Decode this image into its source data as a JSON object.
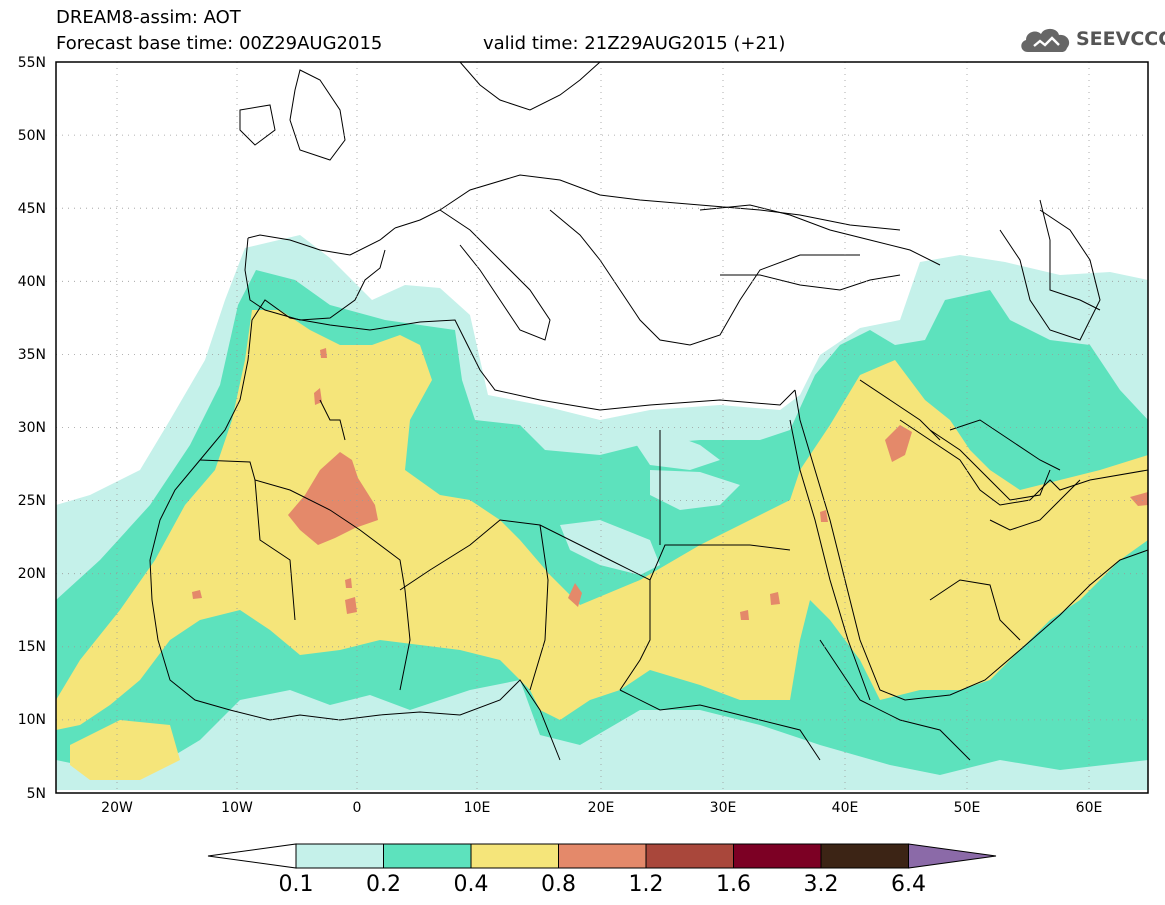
{
  "header": {
    "title": "DREAM8-assim: AOT",
    "base_time": "Forecast base time: 00Z29AUG2015",
    "valid_time": "valid time: 21Z29AUG2015 (+21)"
  },
  "logo": {
    "text": "SEEVCCC",
    "icon": "cloud-icon"
  },
  "map": {
    "lat_labels": [
      "55N",
      "50N",
      "45N",
      "40N",
      "35N",
      "30N",
      "25N",
      "20N",
      "15N",
      "10N",
      "5N"
    ],
    "lon_labels": [
      "20W",
      "10W",
      "0",
      "10E",
      "20E",
      "30E",
      "40E",
      "50E",
      "60E"
    ]
  },
  "colorbar": {
    "labels": [
      "0.1",
      "0.2",
      "0.4",
      "0.8",
      "1.2",
      "1.6",
      "3.2",
      "6.4"
    ],
    "colors": [
      "#c5f1ea",
      "#5de2bd",
      "#f5e57a",
      "#e4896a",
      "#a9473b",
      "#7c0024",
      "#3c2415",
      "#8b6aa8"
    ]
  }
}
